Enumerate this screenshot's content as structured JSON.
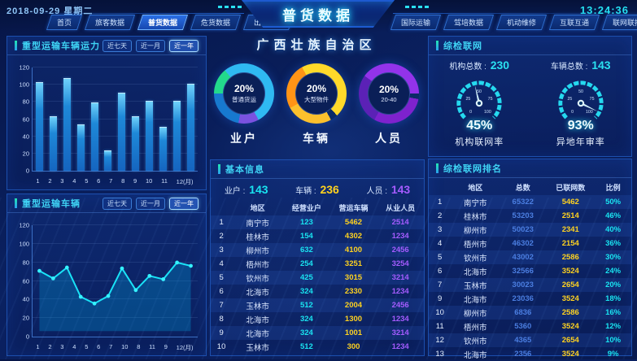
{
  "header": {
    "date": "2018-09-29 星期二",
    "time": "13:24:36",
    "title": "普货数据",
    "left_tabs": [
      {
        "label": "首页",
        "active": false
      },
      {
        "label": "旅客数据",
        "active": false
      },
      {
        "label": "普货数据",
        "active": true
      },
      {
        "label": "危货数据",
        "active": false
      },
      {
        "label": "出租数据",
        "active": false
      }
    ],
    "right_tabs": [
      {
        "label": "国际运输",
        "active": false
      },
      {
        "label": "驾培数据",
        "active": false
      },
      {
        "label": "机动维修",
        "active": false
      },
      {
        "label": "互联互通",
        "active": false
      },
      {
        "label": "联网联控",
        "active": false
      }
    ]
  },
  "filters": {
    "labels": [
      "近七天",
      "近一月",
      "近一年"
    ],
    "active_index": 2
  },
  "left_top_panel": {
    "title": "重型运输车辆运力"
  },
  "left_bottom_panel": {
    "title": "重型运输车辆"
  },
  "center": {
    "region_title": "广西壮族自治区",
    "info_panel": {
      "title": "基本信息",
      "stats": [
        {
          "label": "业户",
          "value": "143",
          "color": "#19e3f0"
        },
        {
          "label": "车辆",
          "value": "236",
          "color": "#ffd21f"
        },
        {
          "label": "人员",
          "value": "143",
          "color": "#a55bff"
        }
      ],
      "table": {
        "headers": [
          "",
          "地区",
          "经营业户",
          "营运车辆",
          "从业人员"
        ],
        "col_classes": [
          "c-idx",
          "c-city",
          "c-cyan",
          "c-yellow",
          "c-purple"
        ],
        "rows": [
          [
            "1",
            "南宁市",
            "123",
            "5462",
            "2514"
          ],
          [
            "2",
            "桂林市",
            "154",
            "4302",
            "1234"
          ],
          [
            "3",
            "柳州市",
            "632",
            "4100",
            "2456"
          ],
          [
            "4",
            "梧州市",
            "254",
            "3251",
            "3254"
          ],
          [
            "5",
            "钦州市",
            "425",
            "3015",
            "3214"
          ],
          [
            "6",
            "北海市",
            "324",
            "2330",
            "1234"
          ],
          [
            "7",
            "玉林市",
            "512",
            "2004",
            "2456"
          ],
          [
            "8",
            "北海市",
            "324",
            "1300",
            "1234"
          ],
          [
            "9",
            "北海市",
            "324",
            "1001",
            "3214"
          ],
          [
            "10",
            "玉林市",
            "512",
            "300",
            "1234"
          ]
        ]
      }
    }
  },
  "right_top": {
    "title": "综检联网",
    "stats": [
      {
        "label": "机构总数",
        "value": "230",
        "color": "#2ae0f0"
      },
      {
        "label": "车辆总数",
        "value": "143",
        "color": "#2ae0f0"
      }
    ]
  },
  "right_bottom": {
    "title": "综检联网排名",
    "table": {
      "headers": [
        "",
        "地区",
        "总数",
        "已联网数",
        "比例"
      ],
      "col_classes": [
        "c-idx",
        "c-city",
        "c-blue",
        "c-yellow",
        "c-cyan"
      ],
      "rows": [
        [
          "1",
          "南宁市",
          "65322",
          "5462",
          "50%"
        ],
        [
          "2",
          "桂林市",
          "53203",
          "2514",
          "46%"
        ],
        [
          "3",
          "柳州市",
          "50023",
          "2341",
          "40%"
        ],
        [
          "4",
          "梧州市",
          "46302",
          "2154",
          "36%"
        ],
        [
          "5",
          "钦州市",
          "43002",
          "2586",
          "30%"
        ],
        [
          "6",
          "北海市",
          "32566",
          "3524",
          "24%"
        ],
        [
          "7",
          "玉林市",
          "30023",
          "2654",
          "20%"
        ],
        [
          "9",
          "北海市",
          "23036",
          "3524",
          "18%"
        ],
        [
          "10",
          "柳州市",
          "6836",
          "2586",
          "16%"
        ],
        [
          "11",
          "梧州市",
          "5360",
          "3524",
          "12%"
        ],
        [
          "12",
          "钦州市",
          "4365",
          "2654",
          "10%"
        ],
        [
          "13",
          "北海市",
          "2356",
          "3524",
          "9%"
        ]
      ]
    }
  },
  "chart_data": [
    {
      "type": "bar",
      "title": "重型运输车辆运力",
      "categories": [
        "1",
        "2",
        "3",
        "4",
        "5",
        "6",
        "7",
        "8",
        "9",
        "10",
        "11",
        "12(月)"
      ],
      "values": [
        102,
        62,
        107,
        53,
        78,
        23,
        90,
        62,
        80,
        50,
        80,
        100
      ],
      "xlabel": "月",
      "ylabel": "",
      "ylim": [
        0,
        120
      ],
      "yticks": [
        0,
        20,
        40,
        60,
        80,
        100,
        120
      ],
      "grid": true,
      "bar_color": "#2e9be8"
    },
    {
      "type": "area",
      "title": "重型运输车辆",
      "categories": [
        "1",
        "2",
        "3",
        "4",
        "5",
        "6",
        "7",
        "10",
        "8",
        "11",
        "9",
        "12(月)"
      ],
      "values": [
        72,
        63,
        76,
        41,
        33,
        42,
        75,
        49,
        66,
        62,
        82,
        78
      ],
      "xlabel": "月",
      "ylabel": "",
      "ylim": [
        0,
        120
      ],
      "yticks": [
        0,
        20,
        40,
        60,
        80,
        100,
        120
      ],
      "grid": true,
      "line_color": "#19e3f7",
      "fill_color": "rgba(0,170,230,0.28)"
    },
    {
      "type": "pie",
      "label": "业户",
      "center_percent": "20%",
      "center_sub": "普通货运",
      "slices": [
        [
          "#2fb9f2",
          42
        ],
        [
          "#7a52e0",
          11
        ],
        [
          "#1779cf",
          22
        ],
        [
          "#23d98c",
          14
        ],
        [
          "#2fb9f2",
          11
        ]
      ]
    },
    {
      "type": "pie",
      "label": "车辆",
      "center_percent": "20%",
      "center_sub": "大型物件",
      "slices": [
        [
          "#ffd92a",
          38
        ],
        [
          "#0b2a66",
          4
        ],
        [
          "#fbc02d",
          25
        ],
        [
          "#ff9416",
          25
        ],
        [
          "#ffd92a",
          8
        ]
      ]
    },
    {
      "type": "pie",
      "label": "人员",
      "center_percent": "20%",
      "center_sub": "20-40",
      "slices": [
        [
          "#9333ea",
          25
        ],
        [
          "#0b2a66",
          3
        ],
        [
          "#7e22ce",
          30
        ],
        [
          "#5b21b6",
          27
        ],
        [
          "#9333ea",
          15
        ]
      ]
    },
    {
      "type": "gauge",
      "label": "机构联网率",
      "value": 45,
      "ticks": [
        "0",
        "25",
        "50",
        "75",
        "100"
      ],
      "max": 100,
      "color": "#25d9ef"
    },
    {
      "type": "gauge",
      "label": "异地年审率",
      "value": 93,
      "ticks": [
        "0",
        "25",
        "50",
        "75",
        "100"
      ],
      "max": 100,
      "color": "#25d9ef"
    }
  ]
}
